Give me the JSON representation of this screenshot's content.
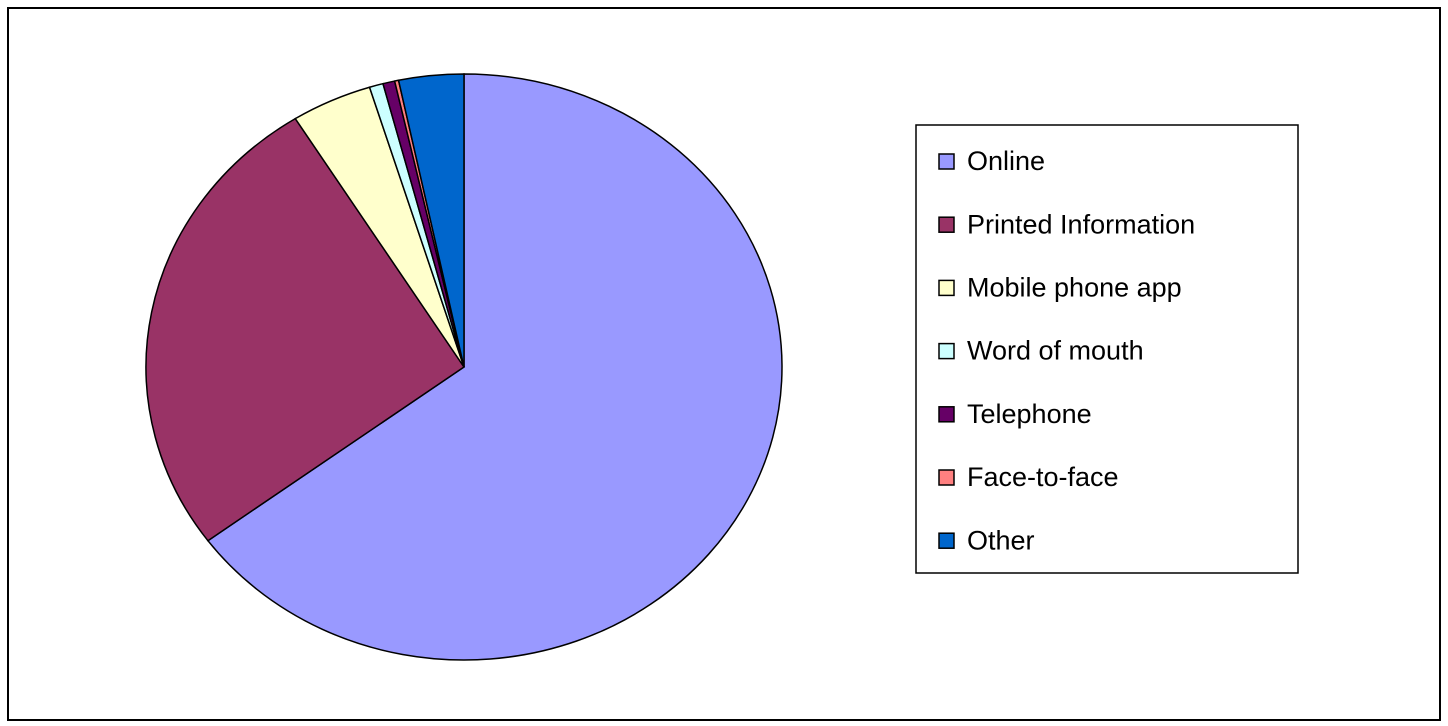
{
  "chart_data": {
    "type": "pie",
    "categories": [
      "Online",
      "Printed Information",
      "Mobile phone app",
      "Word of mouth",
      "Telephone",
      "Face-to-face",
      "Other"
    ],
    "values": [
      64.9,
      26.2,
      4.1,
      0.7,
      0.6,
      0.2,
      3.3
    ],
    "colors": [
      "#9999ff",
      "#993366",
      "#ffffcc",
      "#ccffff",
      "#660066",
      "#ff8080",
      "#0066cc"
    ],
    "legend": "right"
  }
}
